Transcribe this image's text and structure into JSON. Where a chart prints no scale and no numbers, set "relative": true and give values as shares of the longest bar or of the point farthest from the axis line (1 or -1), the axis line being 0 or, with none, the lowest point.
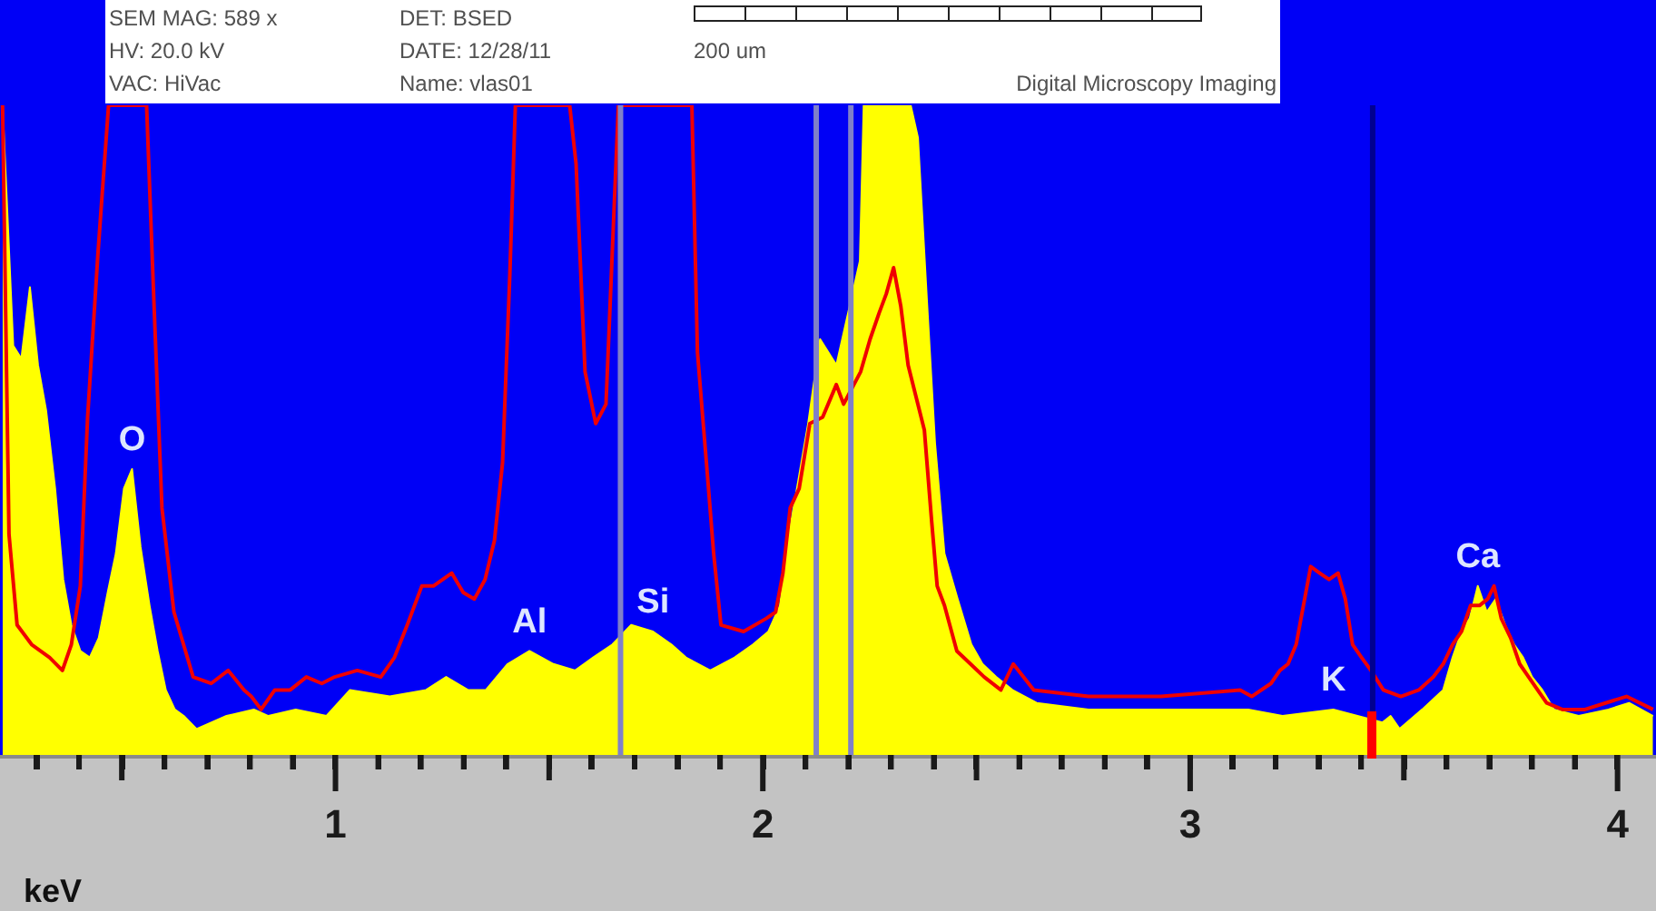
{
  "chart_data": {
    "type": "area",
    "relative": true,
    "xlabel": "keV",
    "xlim": [
      0.215,
      4.09
    ],
    "xticks": [
      {
        "value": 0.3,
        "label": null
      },
      {
        "value": 0.4,
        "label": null
      },
      {
        "value": 0.5,
        "label": null
      },
      {
        "value": 0.6,
        "label": null
      },
      {
        "value": 0.7,
        "label": null
      },
      {
        "value": 0.8,
        "label": null
      },
      {
        "value": 0.9,
        "label": null
      },
      1,
      {
        "value": 1.1,
        "label": null
      },
      {
        "value": 1.2,
        "label": null
      },
      {
        "value": 1.3,
        "label": null
      },
      {
        "value": 1.4,
        "label": null
      },
      {
        "value": 1.5,
        "label": null
      },
      {
        "value": 1.6,
        "label": null
      },
      {
        "value": 1.7,
        "label": null
      },
      {
        "value": 1.8,
        "label": null
      },
      {
        "value": 1.9,
        "label": null
      },
      2,
      {
        "value": 2.1,
        "label": null
      },
      {
        "value": 2.2,
        "label": null
      },
      {
        "value": 2.3,
        "label": null
      },
      {
        "value": 2.4,
        "label": null
      },
      {
        "value": 2.5,
        "label": null
      },
      {
        "value": 2.6,
        "label": null
      },
      {
        "value": 2.7,
        "label": null
      },
      {
        "value": 2.8,
        "label": null
      },
      {
        "value": 2.9,
        "label": null
      },
      3,
      {
        "value": 3.1,
        "label": null
      },
      {
        "value": 3.2,
        "label": null
      },
      {
        "value": 3.3,
        "label": null
      },
      {
        "value": 3.4,
        "label": null
      },
      {
        "value": 3.5,
        "label": null
      },
      {
        "value": 3.6,
        "label": null
      },
      {
        "value": 3.7,
        "label": null
      },
      {
        "value": 3.8,
        "label": null
      },
      {
        "value": 3.9,
        "label": null
      },
      4
    ],
    "series": [
      {
        "color": "#ffff00",
        "x": [
          0.221,
          0.246,
          0.265,
          0.285,
          0.304,
          0.323,
          0.344,
          0.363,
          0.382,
          0.403,
          0.425,
          0.446,
          0.467,
          0.486,
          0.505,
          0.524,
          0.544,
          0.565,
          0.584,
          0.603,
          0.624,
          0.645,
          0.675,
          0.745,
          0.809,
          0.843,
          0.907,
          0.979,
          1.034,
          1.127,
          1.212,
          1.259,
          1.31,
          1.352,
          1.403,
          1.454,
          1.51,
          1.561,
          1.603,
          1.648,
          1.692,
          1.743,
          1.786,
          1.82,
          1.877,
          1.934,
          1.977,
          2.013,
          2.04,
          2.064,
          2.085,
          2.106,
          2.134,
          2.172,
          2.227,
          2.236,
          2.244,
          2.346,
          2.363,
          2.384,
          2.403,
          2.425,
          2.456,
          2.488,
          2.514,
          2.546,
          2.584,
          2.641,
          2.762,
          2.932,
          3.136,
          3.216,
          3.335,
          3.45,
          3.469,
          3.49,
          3.543,
          3.592,
          3.614,
          3.635,
          3.654,
          3.673,
          3.694,
          3.715,
          3.737,
          3.758,
          3.779,
          3.8,
          3.824,
          3.851,
          3.909,
          3.979,
          4.027,
          4.083
        ],
        "values": [
          1,
          0.63,
          0.61,
          0.72,
          0.6,
          0.53,
          0.41,
          0.27,
          0.2,
          0.16,
          0.15,
          0.18,
          0.25,
          0.31,
          0.41,
          0.44,
          0.32,
          0.23,
          0.16,
          0.1,
          0.07,
          0.06,
          0.04,
          0.06,
          0.07,
          0.06,
          0.07,
          0.06,
          0.1,
          0.09,
          0.1,
          0.12,
          0.1,
          0.1,
          0.14,
          0.16,
          0.14,
          0.13,
          0.15,
          0.17,
          0.2,
          0.19,
          0.17,
          0.15,
          0.13,
          0.15,
          0.17,
          0.19,
          0.23,
          0.35,
          0.43,
          0.51,
          0.64,
          0.6,
          0.76,
          1,
          1,
          1,
          0.95,
          0.7,
          0.48,
          0.31,
          0.24,
          0.17,
          0.14,
          0.12,
          0.1,
          0.08,
          0.07,
          0.07,
          0.07,
          0.06,
          0.07,
          0.05,
          0.06,
          0.04,
          0.07,
          0.1,
          0.15,
          0.19,
          0.21,
          0.26,
          0.22,
          0.24,
          0.2,
          0.17,
          0.15,
          0.12,
          0.1,
          0.07,
          0.06,
          0.07,
          0.08,
          0.06
        ]
      },
      {
        "type": "line",
        "color": "#f00000",
        "x": [
          0.221,
          0.236,
          0.255,
          0.289,
          0.331,
          0.361,
          0.382,
          0.403,
          0.42,
          0.444,
          0.469,
          0.558,
          0.575,
          0.594,
          0.622,
          0.667,
          0.709,
          0.749,
          0.786,
          0.803,
          0.826,
          0.858,
          0.894,
          0.932,
          0.968,
          0.998,
          1.051,
          1.106,
          1.138,
          1.168,
          1.202,
          1.229,
          1.272,
          1.299,
          1.325,
          1.35,
          1.372,
          1.391,
          1.408,
          1.421,
          1.548,
          1.563,
          1.584,
          1.609,
          1.633,
          1.65,
          1.662,
          1.834,
          1.847,
          1.868,
          1.885,
          1.902,
          1.955,
          2.008,
          2.03,
          2.047,
          2.064,
          2.085,
          2.11,
          2.14,
          2.172,
          2.189,
          2.229,
          2.251,
          2.272,
          2.289,
          2.306,
          2.323,
          2.34,
          2.359,
          2.378,
          2.395,
          2.408,
          2.425,
          2.454,
          2.486,
          2.518,
          2.557,
          2.586,
          2.634,
          2.762,
          2.932,
          3.117,
          3.144,
          3.189,
          3.21,
          3.229,
          3.248,
          3.265,
          3.282,
          3.303,
          3.325,
          3.346,
          3.363,
          3.38,
          3.401,
          3.423,
          3.452,
          3.493,
          3.535,
          3.569,
          3.592,
          3.614,
          3.635,
          3.656,
          3.677,
          3.696,
          3.711,
          3.728,
          3.75,
          3.771,
          3.792,
          3.813,
          3.834,
          3.871,
          3.924,
          3.972,
          4.021,
          4.083
        ],
        "values": [
          1,
          0.34,
          0.2,
          0.17,
          0.15,
          0.13,
          0.17,
          0.26,
          0.52,
          0.77,
          1,
          1,
          0.7,
          0.38,
          0.22,
          0.12,
          0.11,
          0.13,
          0.1,
          0.09,
          0.07,
          0.1,
          0.1,
          0.12,
          0.11,
          0.12,
          0.13,
          0.12,
          0.15,
          0.2,
          0.26,
          0.26,
          0.28,
          0.25,
          0.24,
          0.27,
          0.33,
          0.45,
          0.74,
          1,
          1,
          0.91,
          0.59,
          0.51,
          0.54,
          0.81,
          1,
          1,
          0.62,
          0.45,
          0.31,
          0.2,
          0.19,
          0.21,
          0.22,
          0.28,
          0.38,
          0.41,
          0.51,
          0.52,
          0.57,
          0.54,
          0.59,
          0.64,
          0.68,
          0.71,
          0.75,
          0.69,
          0.6,
          0.55,
          0.5,
          0.36,
          0.26,
          0.23,
          0.16,
          0.14,
          0.12,
          0.1,
          0.14,
          0.1,
          0.09,
          0.09,
          0.1,
          0.09,
          0.11,
          0.13,
          0.14,
          0.17,
          0.23,
          0.29,
          0.28,
          0.27,
          0.28,
          0.24,
          0.17,
          0.15,
          0.13,
          0.1,
          0.09,
          0.1,
          0.12,
          0.14,
          0.17,
          0.19,
          0.23,
          0.23,
          0.24,
          0.26,
          0.21,
          0.18,
          0.14,
          0.12,
          0.1,
          0.08,
          0.07,
          0.07,
          0.08,
          0.09,
          0.07
        ]
      }
    ],
    "ref_lines": [
      {
        "axis": "x",
        "value": 1.667,
        "color": "#8080c8"
      },
      {
        "axis": "x",
        "value": 2.125,
        "color": "#8080c8"
      },
      {
        "axis": "x",
        "value": 2.206,
        "color": "#8080c8"
      },
      {
        "axis": "x",
        "value": 3.427,
        "color": "#000090"
      }
    ],
    "annotations": [
      "SEM MAG: 589 x",
      "HV: 20.0 kV",
      "VAC: HiVac",
      "DET: BSED",
      "DATE: 12/28/11",
      "Name: vlas01",
      "200 um",
      "Digital Microscopy Imaging",
      {
        "text": "O",
        "x": 0.524,
        "y": 0.44
      },
      {
        "text": "Al",
        "x": 1.454,
        "y": 0.16
      },
      {
        "text": "Si",
        "x": 1.743,
        "y": 0.19
      },
      {
        "text": "K",
        "x": 3.335,
        "y": 0.07
      },
      {
        "text": "Ca",
        "x": 3.673,
        "y": 0.26
      }
    ]
  }
}
